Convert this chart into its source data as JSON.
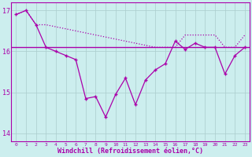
{
  "x_hours": [
    0,
    1,
    2,
    3,
    4,
    5,
    6,
    7,
    8,
    9,
    10,
    11,
    12,
    13,
    14,
    15,
    16,
    17,
    18,
    19,
    20,
    21,
    22,
    23
  ],
  "windchill": [
    16.9,
    17.0,
    16.65,
    16.1,
    16.0,
    15.9,
    15.8,
    14.85,
    14.9,
    14.4,
    14.95,
    15.35,
    14.7,
    15.3,
    15.55,
    15.7,
    16.25,
    16.05,
    16.2,
    16.1,
    16.1,
    15.45,
    15.9,
    16.1
  ],
  "temp_sloped": [
    16.9,
    17.0,
    16.65,
    16.65,
    16.6,
    16.55,
    16.5,
    16.45,
    16.4,
    16.35,
    16.3,
    16.25,
    16.2,
    16.15,
    16.1,
    16.1,
    16.1,
    16.4,
    16.4,
    16.4,
    16.4,
    16.1,
    16.1,
    16.4
  ],
  "temp_flat": 16.1,
  "line_color": "#aa00aa",
  "bg_color": "#cceeee",
  "grid_color": "#aacccc",
  "text_color": "#aa00aa",
  "xlabel": "Windchill (Refroidissement éolien,°C)",
  "ylim": [
    13.8,
    17.2
  ],
  "xlim": [
    -0.5,
    23.5
  ],
  "yticks": [
    14,
    15,
    16,
    17
  ],
  "xtick_labels": [
    "0",
    "1",
    "2",
    "3",
    "4",
    "5",
    "6",
    "7",
    "8",
    "9",
    "10",
    "11",
    "12",
    "13",
    "14",
    "15",
    "16",
    "17",
    "18",
    "19",
    "20",
    "21",
    "22",
    "23"
  ]
}
